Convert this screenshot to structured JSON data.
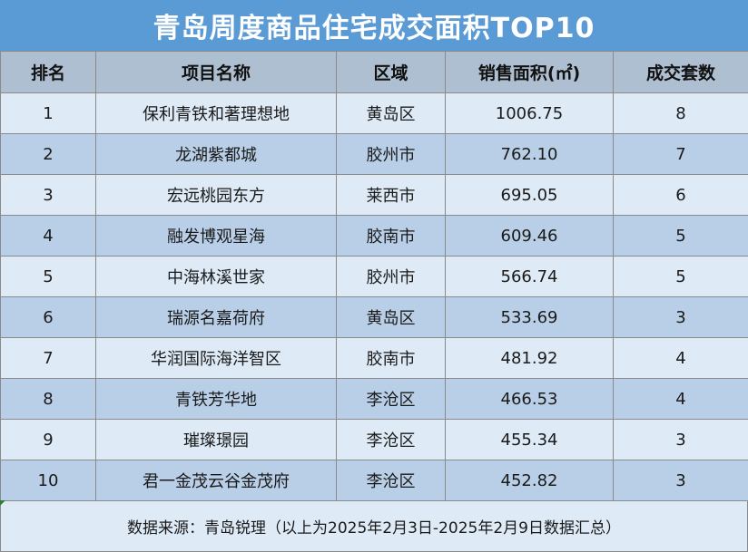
{
  "title": "青岛周度商品住宅成交面积TOP10",
  "headers": [
    "排名",
    "项目名称",
    "区域",
    "销售面积(㎡)",
    "成交套数"
  ],
  "rows": [
    {
      "rank": "1",
      "name": "保利青铁和著理想地",
      "district": "黄岛区",
      "area": "1006.75",
      "units": "8"
    },
    {
      "rank": "2",
      "name": "龙湖紫都城",
      "district": "胶州市",
      "area": "762.10",
      "units": "7"
    },
    {
      "rank": "3",
      "name": "宏远桃园东方",
      "district": "莱西市",
      "area": "695.05",
      "units": "6"
    },
    {
      "rank": "4",
      "name": "融发博观星海",
      "district": "胶南市",
      "area": "609.46",
      "units": "5"
    },
    {
      "rank": "5",
      "name": "中海林溪世家",
      "district": "胶州市",
      "area": "566.74",
      "units": "5"
    },
    {
      "rank": "6",
      "name": "瑞源名嘉荷府",
      "district": "黄岛区",
      "area": "533.69",
      "units": "3"
    },
    {
      "rank": "7",
      "name": "华润国际海洋智区",
      "district": "胶南市",
      "area": "481.92",
      "units": "4"
    },
    {
      "rank": "8",
      "name": "青铁芳华地",
      "district": "李沧区",
      "area": "466.53",
      "units": "4"
    },
    {
      "rank": "9",
      "name": "璀璨璟园",
      "district": "李沧区",
      "area": "455.34",
      "units": "3"
    },
    {
      "rank": "10",
      "name": "君一金茂云谷金茂府",
      "district": "李沧区",
      "area": "452.82",
      "units": "3"
    }
  ],
  "footer": "数据来源：青岛锐理（以上为2025年2月3日-2025年2月9日数据汇总）",
  "colors": {
    "title_bg": "#5b9bd5",
    "header_bg": "#aebfd2",
    "row_light": "#deeaf6",
    "row_dark": "#b9cfe8"
  }
}
